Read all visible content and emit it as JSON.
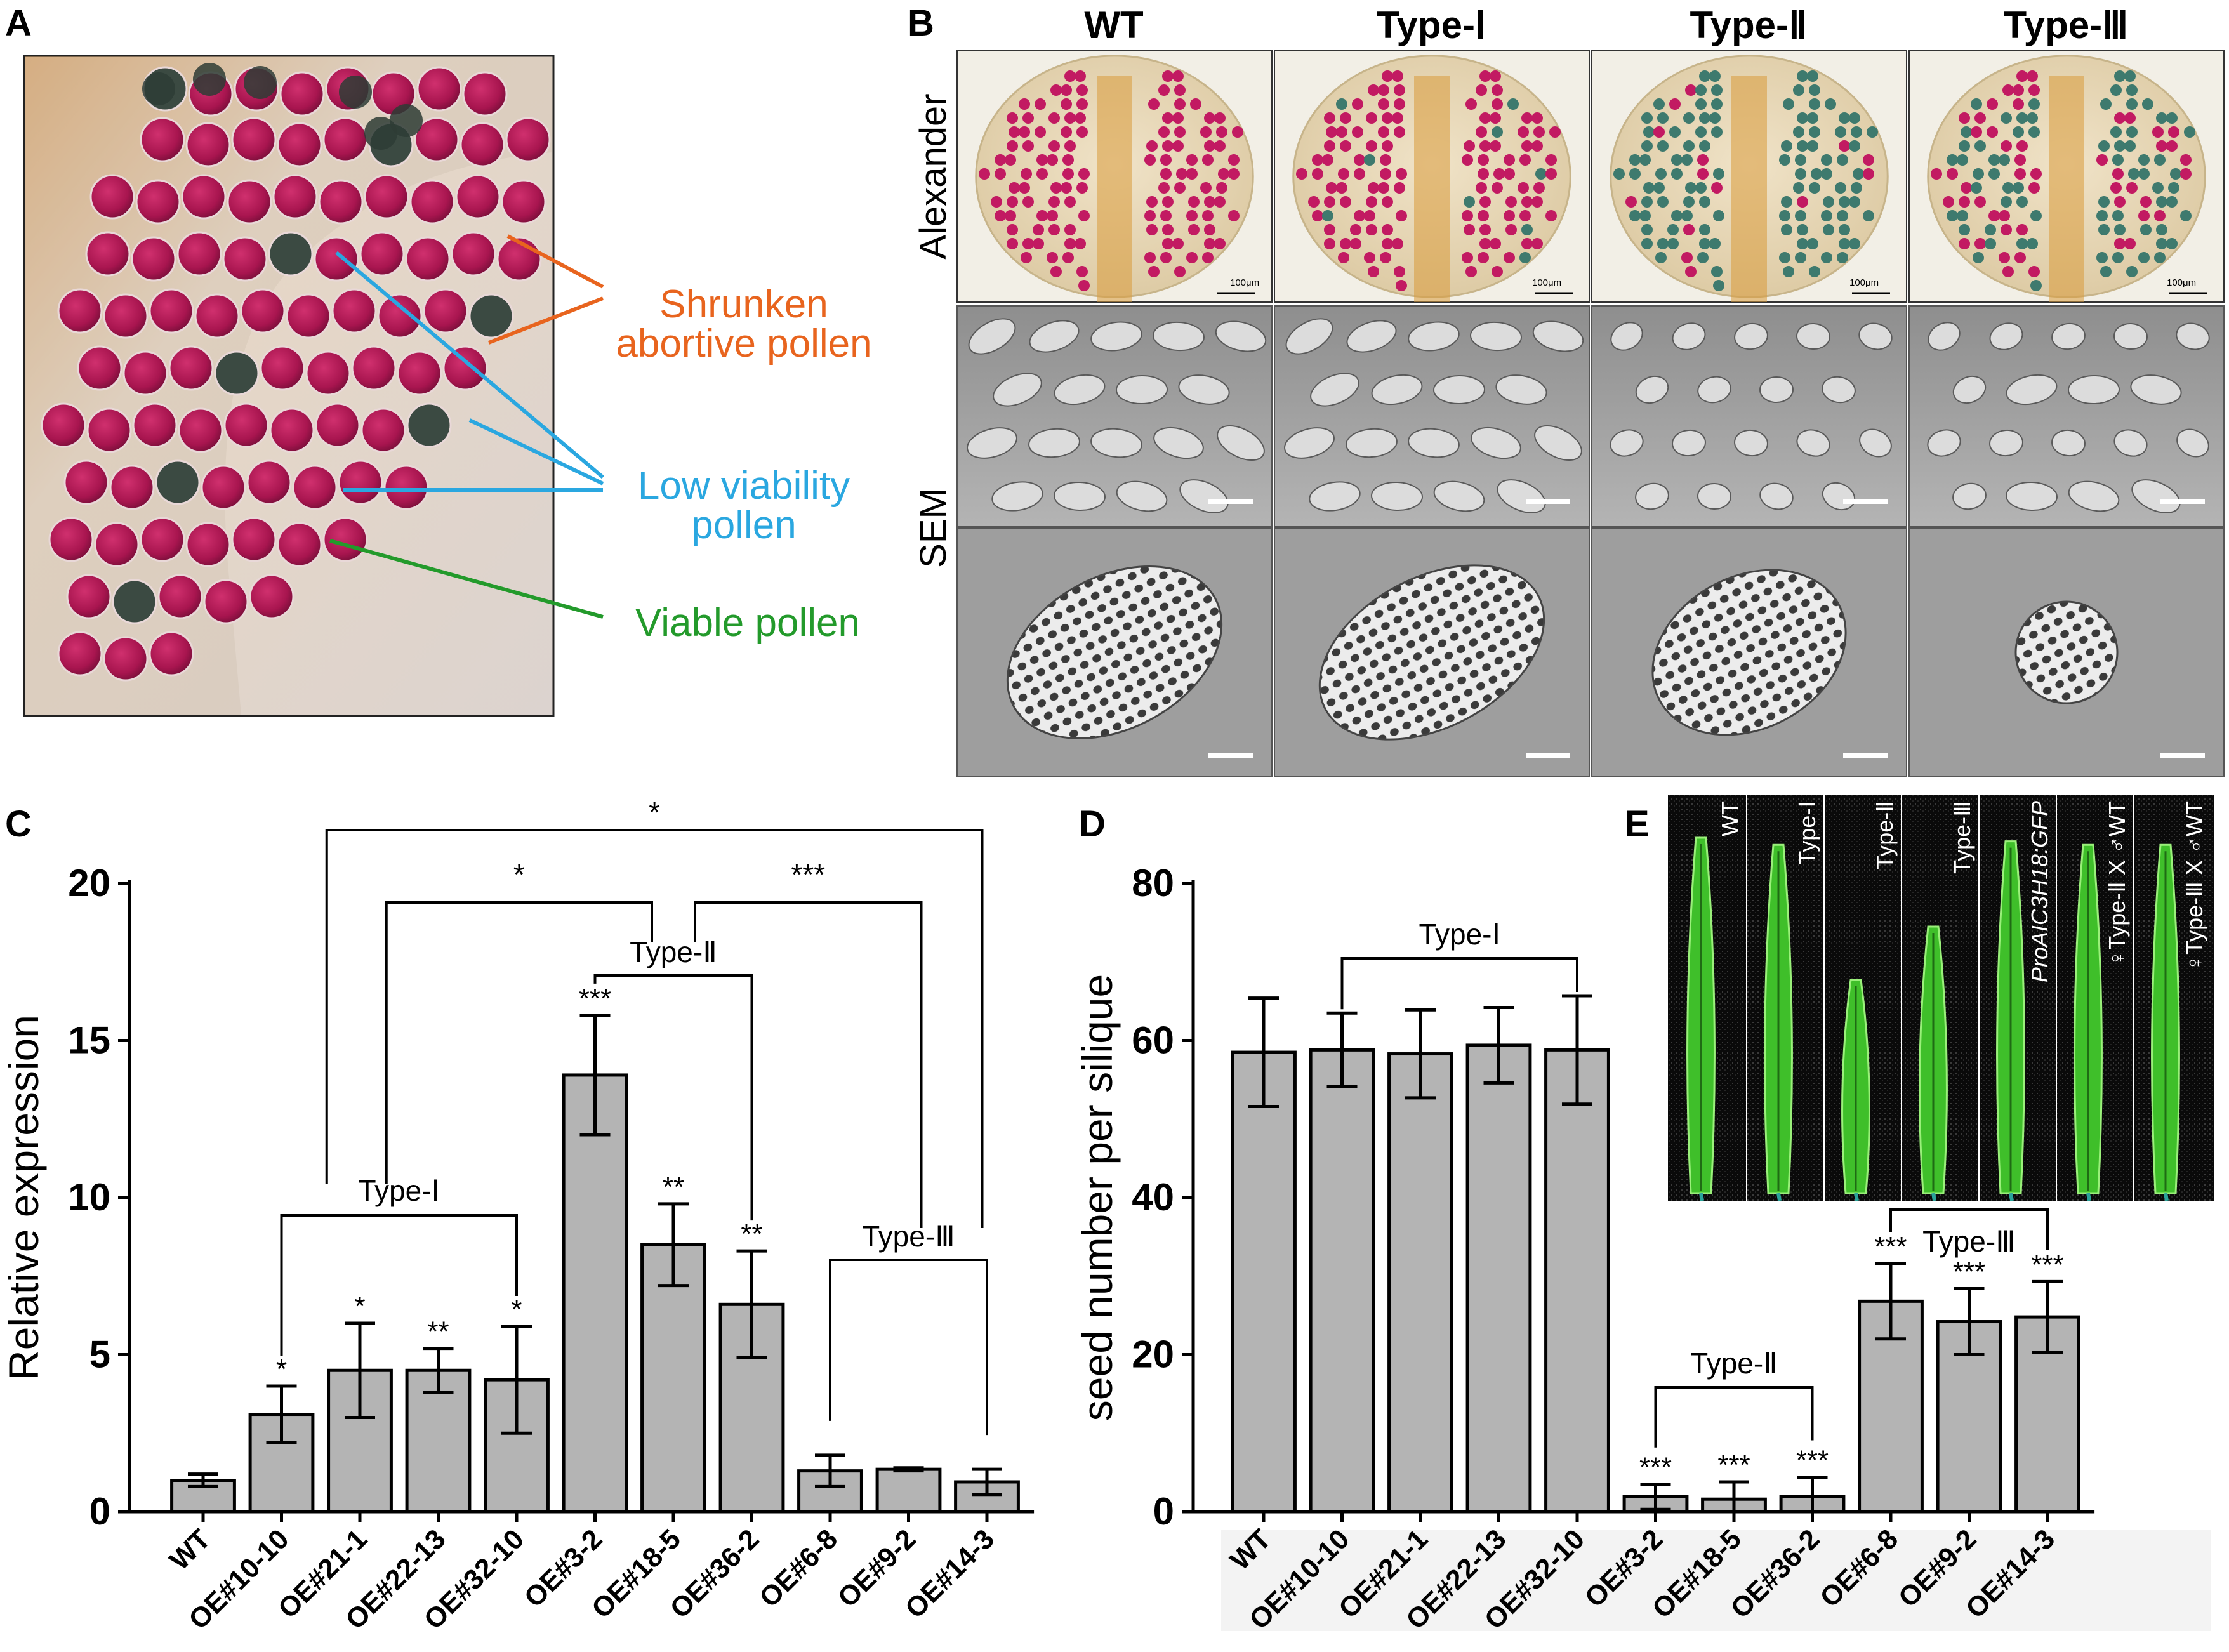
{
  "panel_letters": {
    "a": "A",
    "b": "B",
    "c": "C",
    "d": "D",
    "e": "E"
  },
  "panel_a": {
    "labels": {
      "shrunken_1": "Shrunken",
      "shrunken_2": "abortive pollen",
      "low_1": "Low viability",
      "low_2": "pollen",
      "viable": "Viable pollen"
    },
    "colors": {
      "shrunken": "#e8641e",
      "low": "#2aa7e0",
      "viable": "#239a2b",
      "tissue": "#d9c4b4",
      "pollen": "#b01a5a"
    }
  },
  "panel_b": {
    "columns": [
      "WT",
      "Type-Ⅰ",
      "Type-Ⅱ",
      "Type-Ⅲ"
    ],
    "rows": [
      "Alexander",
      "SEM"
    ],
    "scale_text": "100μm"
  },
  "panel_e": {
    "lanes": [
      "WT",
      "Type-Ⅰ",
      "Type-Ⅱ",
      "Type-Ⅲ",
      "ProAIC3H18:GFP",
      "♀Type-Ⅱ X ♂WT",
      "♀Type-Ⅲ X ♂WT"
    ],
    "silique_length": [
      1.0,
      0.98,
      0.6,
      0.75,
      0.99,
      0.98,
      0.98
    ]
  },
  "chart_data": [
    {
      "type": "bar",
      "panel": "C",
      "categories": [
        "WT",
        "OE#10-10",
        "OE#21-1",
        "OE#22-13",
        "OE#32-10",
        "OE#3-2",
        "OE#18-5",
        "OE#36-2",
        "OE#6-8",
        "OE#9-2",
        "OE#14-3"
      ],
      "values": [
        1.0,
        3.1,
        4.5,
        4.5,
        4.2,
        13.9,
        8.5,
        6.6,
        1.3,
        1.35,
        0.95
      ],
      "errors": [
        0.2,
        0.9,
        1.5,
        0.7,
        1.7,
        1.9,
        1.3,
        1.7,
        0.5,
        0.05,
        0.4
      ],
      "significance": [
        "",
        "*",
        "*",
        "**",
        "*",
        "***",
        "**",
        "**",
        "",
        "",
        ""
      ],
      "ylabel": "Relative expression",
      "xlabel": "",
      "ylim": [
        0,
        20
      ],
      "yticks": [
        0,
        5,
        10,
        15,
        20
      ],
      "bar_color": "#b4b4b4",
      "groups": [
        {
          "label": "Type-Ⅰ",
          "from": 1,
          "to": 4
        },
        {
          "label": "Type-Ⅱ",
          "from": 5,
          "to": 7
        },
        {
          "label": "Type-Ⅲ",
          "from": 8,
          "to": 10
        }
      ],
      "comparisons": [
        {
          "stars": "*",
          "from": "Type-Ⅰ",
          "to": "Type-Ⅱ"
        },
        {
          "stars": "***",
          "from": "Type-Ⅱ",
          "to": "Type-Ⅲ"
        },
        {
          "stars": "*",
          "from": "Type-Ⅰ",
          "to": "Type-Ⅲ"
        }
      ]
    },
    {
      "type": "bar",
      "panel": "D",
      "categories": [
        "WT",
        "OE#10-10",
        "OE#21-1",
        "OE#22-13",
        "OE#32-10",
        "OE#3-2",
        "OE#18-5",
        "OE#36-2",
        "OE#6-8",
        "OE#9-2",
        "OE#14-3"
      ],
      "values": [
        58.5,
        58.8,
        58.3,
        59.4,
        58.8,
        1.9,
        1.6,
        1.9,
        26.8,
        24.2,
        24.8
      ],
      "errors": [
        6.9,
        4.7,
        5.6,
        4.8,
        6.9,
        1.6,
        2.2,
        2.5,
        4.8,
        4.2,
        4.5
      ],
      "significance": [
        "",
        "",
        "",
        "",
        "",
        "***",
        "***",
        "***",
        "***",
        "***",
        "***"
      ],
      "ylabel": "seed number per silique",
      "xlabel": "",
      "ylim": [
        0,
        80
      ],
      "yticks": [
        0,
        20,
        40,
        60,
        80
      ],
      "bar_color": "#b4b4b4",
      "groups": [
        {
          "label": "Type-Ⅰ",
          "from": 1,
          "to": 4
        },
        {
          "label": "Type-Ⅱ",
          "from": 5,
          "to": 7
        },
        {
          "label": "Type-Ⅲ",
          "from": 8,
          "to": 10
        }
      ]
    }
  ]
}
